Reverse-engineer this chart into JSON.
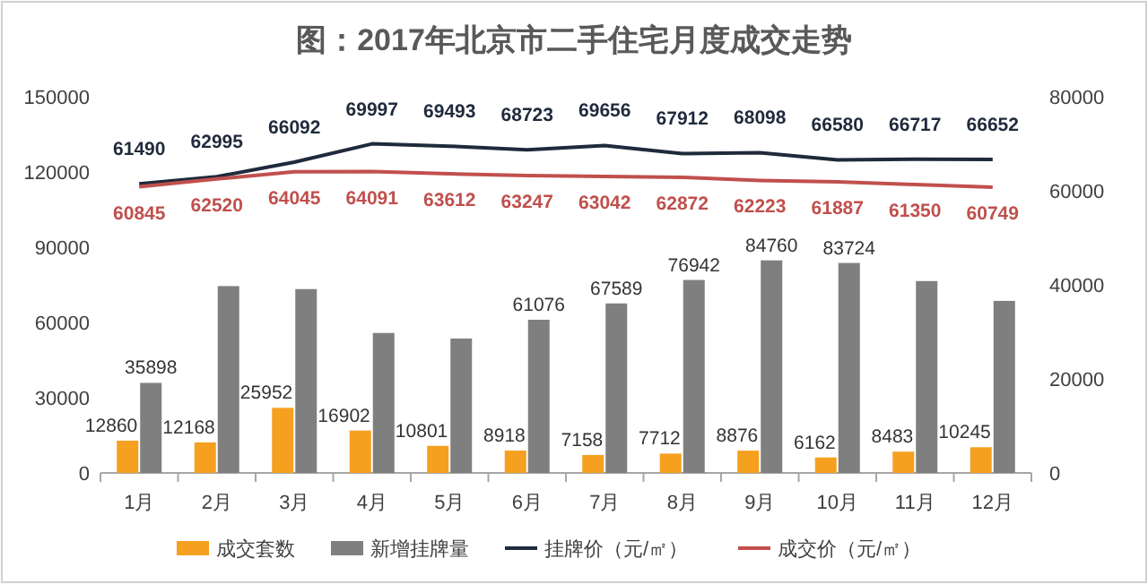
{
  "chart_data": {
    "type": "bar",
    "title": "图：2017年北京市二手住宅月度成交走势",
    "categories": [
      "1月",
      "2月",
      "3月",
      "4月",
      "5月",
      "6月",
      "7月",
      "8月",
      "9月",
      "10月",
      "11月",
      "12月"
    ],
    "series": [
      {
        "name": "成交套数",
        "color": "#f5a01f",
        "values": [
          12860,
          12168,
          25952,
          16902,
          10801,
          8918,
          7158,
          7712,
          8876,
          6162,
          8483,
          10245
        ],
        "value_labels": [
          "12860",
          "12168",
          "25952",
          "16902",
          "10801",
          "8918",
          "7158",
          "7712",
          "8876",
          "6162",
          "8483",
          "10245"
        ]
      },
      {
        "name": "新增挂牌量",
        "color": "#7f7f7f",
        "values": [
          35898,
          74500,
          73300,
          55800,
          53600,
          61076,
          67589,
          76942,
          84760,
          83724,
          76500,
          68600
        ],
        "value_labels": [
          "35898",
          null,
          null,
          null,
          null,
          "61076",
          "67589",
          "76942",
          "84760",
          "83724",
          null,
          null
        ]
      },
      {
        "name": "挂牌价（元/㎡）",
        "type": "line",
        "axis": "y2",
        "color": "#1f2a3c",
        "values": [
          61490,
          62995,
          66092,
          69997,
          69493,
          68723,
          69656,
          67912,
          68098,
          66580,
          66717,
          66652
        ],
        "value_labels": [
          "61490",
          "62995",
          "66092",
          "69997",
          "69493",
          "68723",
          "69656",
          "67912",
          "68098",
          "66580",
          "66717",
          "66652"
        ]
      },
      {
        "name": "成交价（元/㎡）",
        "type": "line",
        "axis": "y2",
        "color": "#c0504d",
        "values": [
          60845,
          62520,
          64045,
          64091,
          63612,
          63247,
          63042,
          62872,
          62223,
          61887,
          61350,
          60749
        ],
        "value_labels": [
          "60845",
          "62520",
          "64045",
          "64091",
          "63612",
          "63247",
          "63042",
          "62872",
          "62223",
          "61887",
          "61350",
          "60749"
        ]
      }
    ],
    "ylim": [
      0,
      150000
    ],
    "yticks": [
      0,
      30000,
      60000,
      90000,
      120000,
      150000
    ],
    "y2lim": [
      0,
      80000
    ],
    "y2ticks": [
      0,
      20000,
      40000,
      60000,
      80000
    ],
    "legend": "bottom"
  }
}
